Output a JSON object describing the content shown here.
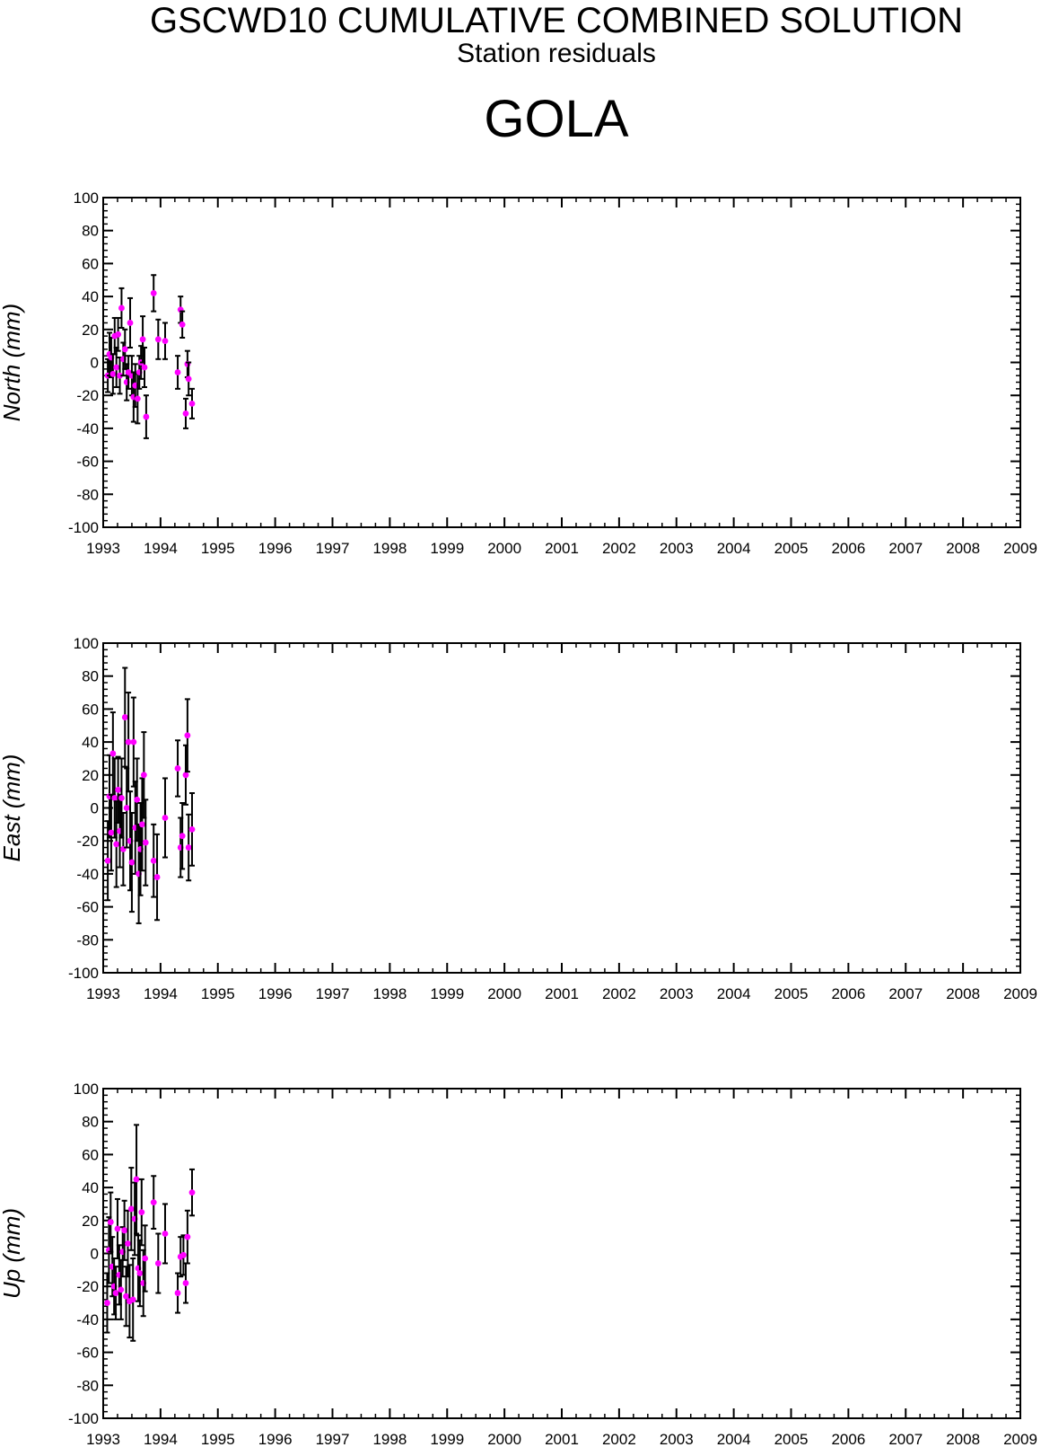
{
  "header": {
    "title": "GSCWD10 CUMULATIVE COMBINED SOLUTION",
    "subtitle": "Station residuals",
    "station": "GOLA"
  },
  "colors": {
    "point": "#ff00ff",
    "errorbar": "#000000",
    "axis": "#000000"
  },
  "chart_data": [
    {
      "type": "scatter",
      "panel": "north",
      "ylabel": "North (mm)",
      "xlim": [
        1993,
        2009
      ],
      "ylim": [
        -100,
        100
      ],
      "xticks": [
        "1993",
        "1994",
        "1995",
        "1996",
        "1997",
        "1998",
        "1999",
        "2000",
        "2001",
        "2002",
        "2003",
        "2004",
        "2005",
        "2006",
        "2007",
        "2008",
        "2009"
      ],
      "yticks": [
        "100",
        "80",
        "60",
        "40",
        "20",
        "0",
        "-20",
        "-40",
        "-60",
        "-80",
        "-100"
      ],
      "points": [
        {
          "x": 1993.08,
          "y": -8,
          "err": 10
        },
        {
          "x": 1993.11,
          "y": 5,
          "err": 13
        },
        {
          "x": 1993.14,
          "y": 3,
          "err": 12
        },
        {
          "x": 1993.17,
          "y": -7,
          "err": 12
        },
        {
          "x": 1993.2,
          "y": 16,
          "err": 11
        },
        {
          "x": 1993.23,
          "y": -3,
          "err": 12
        },
        {
          "x": 1993.26,
          "y": 17,
          "err": 10
        },
        {
          "x": 1993.29,
          "y": -8,
          "err": 11
        },
        {
          "x": 1993.32,
          "y": 33,
          "err": 12
        },
        {
          "x": 1993.35,
          "y": 2,
          "err": 10
        },
        {
          "x": 1993.38,
          "y": 8,
          "err": 12
        },
        {
          "x": 1993.41,
          "y": -12,
          "err": 11
        },
        {
          "x": 1993.44,
          "y": -6,
          "err": 10
        },
        {
          "x": 1993.47,
          "y": 24,
          "err": 15
        },
        {
          "x": 1993.5,
          "y": -8,
          "err": 12
        },
        {
          "x": 1993.53,
          "y": -21,
          "err": 15
        },
        {
          "x": 1993.56,
          "y": -14,
          "err": 13
        },
        {
          "x": 1993.6,
          "y": -22,
          "err": 15
        },
        {
          "x": 1993.63,
          "y": -6,
          "err": 10
        },
        {
          "x": 1993.66,
          "y": 0,
          "err": 10
        },
        {
          "x": 1993.69,
          "y": 14,
          "err": 14
        },
        {
          "x": 1993.72,
          "y": -3,
          "err": 12
        },
        {
          "x": 1993.75,
          "y": -33,
          "err": 13
        },
        {
          "x": 1993.88,
          "y": 42,
          "err": 11
        },
        {
          "x": 1993.96,
          "y": 14,
          "err": 12
        },
        {
          "x": 1994.08,
          "y": 13,
          "err": 11
        },
        {
          "x": 1994.3,
          "y": -6,
          "err": 10
        },
        {
          "x": 1994.35,
          "y": 32,
          "err": 8
        },
        {
          "x": 1994.38,
          "y": 23,
          "err": 8
        },
        {
          "x": 1994.44,
          "y": -31,
          "err": 9
        },
        {
          "x": 1994.47,
          "y": -1,
          "err": 8
        },
        {
          "x": 1994.49,
          "y": -10,
          "err": 10
        },
        {
          "x": 1994.55,
          "y": -25,
          "err": 9
        }
      ]
    },
    {
      "type": "scatter",
      "panel": "east",
      "ylabel": "East (mm)",
      "xlim": [
        1993,
        2009
      ],
      "ylim": [
        -100,
        100
      ],
      "xticks": [
        "1993",
        "1994",
        "1995",
        "1996",
        "1997",
        "1998",
        "1999",
        "2000",
        "2001",
        "2002",
        "2003",
        "2004",
        "2005",
        "2006",
        "2007",
        "2008",
        "2009"
      ],
      "yticks": [
        "100",
        "80",
        "60",
        "40",
        "20",
        "0",
        "-20",
        "-40",
        "-60",
        "-80",
        "-100"
      ],
      "points": [
        {
          "x": 1993.08,
          "y": -32,
          "err": 24
        },
        {
          "x": 1993.11,
          "y": 7,
          "err": 25
        },
        {
          "x": 1993.14,
          "y": -15,
          "err": 23
        },
        {
          "x": 1993.17,
          "y": 33,
          "err": 25
        },
        {
          "x": 1993.2,
          "y": 6,
          "err": 24
        },
        {
          "x": 1993.23,
          "y": -22,
          "err": 26
        },
        {
          "x": 1993.26,
          "y": 11,
          "err": 20
        },
        {
          "x": 1993.29,
          "y": -14,
          "err": 22
        },
        {
          "x": 1993.32,
          "y": 6,
          "err": 24
        },
        {
          "x": 1993.35,
          "y": -25,
          "err": 22
        },
        {
          "x": 1993.38,
          "y": 55,
          "err": 30
        },
        {
          "x": 1993.41,
          "y": 0,
          "err": 24
        },
        {
          "x": 1993.44,
          "y": 40,
          "err": 30
        },
        {
          "x": 1993.47,
          "y": -20,
          "err": 30
        },
        {
          "x": 1993.5,
          "y": -33,
          "err": 30
        },
        {
          "x": 1993.53,
          "y": 40,
          "err": 27
        },
        {
          "x": 1993.56,
          "y": -12,
          "err": 28
        },
        {
          "x": 1993.59,
          "y": 5,
          "err": 25
        },
        {
          "x": 1993.62,
          "y": -40,
          "err": 30
        },
        {
          "x": 1993.65,
          "y": -25,
          "err": 28
        },
        {
          "x": 1993.68,
          "y": -10,
          "err": 28
        },
        {
          "x": 1993.71,
          "y": 20,
          "err": 26
        },
        {
          "x": 1993.74,
          "y": -21,
          "err": 26
        },
        {
          "x": 1993.88,
          "y": -32,
          "err": 22
        },
        {
          "x": 1993.94,
          "y": -42,
          "err": 26
        },
        {
          "x": 1994.08,
          "y": -6,
          "err": 24
        },
        {
          "x": 1994.3,
          "y": 24,
          "err": 17
        },
        {
          "x": 1994.35,
          "y": -24,
          "err": 18
        },
        {
          "x": 1994.38,
          "y": -17,
          "err": 20
        },
        {
          "x": 1994.44,
          "y": 20,
          "err": 18
        },
        {
          "x": 1994.47,
          "y": 44,
          "err": 22
        },
        {
          "x": 1994.49,
          "y": -24,
          "err": 20
        },
        {
          "x": 1994.55,
          "y": -13,
          "err": 22
        }
      ]
    },
    {
      "type": "scatter",
      "panel": "up",
      "ylabel": "Up (mm)",
      "xlim": [
        1993,
        2009
      ],
      "ylim": [
        -100,
        100
      ],
      "xticks": [
        "1993",
        "1994",
        "1995",
        "1996",
        "1997",
        "1998",
        "1999",
        "2000",
        "2001",
        "2002",
        "2003",
        "2004",
        "2005",
        "2006",
        "2007",
        "2008",
        "2009"
      ],
      "yticks": [
        "100",
        "80",
        "60",
        "40",
        "20",
        "0",
        "-20",
        "-40",
        "-60",
        "-80",
        "-100"
      ],
      "points": [
        {
          "x": 1993.07,
          "y": -30,
          "err": 18
        },
        {
          "x": 1993.1,
          "y": 2,
          "err": 20
        },
        {
          "x": 1993.13,
          "y": 19,
          "err": 18
        },
        {
          "x": 1993.16,
          "y": -8,
          "err": 18
        },
        {
          "x": 1993.19,
          "y": -20,
          "err": 17
        },
        {
          "x": 1993.22,
          "y": -24,
          "err": 16
        },
        {
          "x": 1993.25,
          "y": 15,
          "err": 18
        },
        {
          "x": 1993.28,
          "y": -13,
          "err": 18
        },
        {
          "x": 1993.31,
          "y": -22,
          "err": 18
        },
        {
          "x": 1993.34,
          "y": 1,
          "err": 15
        },
        {
          "x": 1993.37,
          "y": 14,
          "err": 18
        },
        {
          "x": 1993.4,
          "y": -26,
          "err": 18
        },
        {
          "x": 1993.43,
          "y": 6,
          "err": 20
        },
        {
          "x": 1993.46,
          "y": -29,
          "err": 22
        },
        {
          "x": 1993.49,
          "y": 27,
          "err": 25
        },
        {
          "x": 1993.52,
          "y": -28,
          "err": 25
        },
        {
          "x": 1993.55,
          "y": 21,
          "err": 22
        },
        {
          "x": 1993.58,
          "y": 45,
          "err": 33
        },
        {
          "x": 1993.61,
          "y": -9,
          "err": 20
        },
        {
          "x": 1993.64,
          "y": -12,
          "err": 20
        },
        {
          "x": 1993.67,
          "y": 25,
          "err": 20
        },
        {
          "x": 1993.7,
          "y": -18,
          "err": 20
        },
        {
          "x": 1993.73,
          "y": -3,
          "err": 20
        },
        {
          "x": 1993.88,
          "y": 31,
          "err": 16
        },
        {
          "x": 1993.96,
          "y": -6,
          "err": 18
        },
        {
          "x": 1994.08,
          "y": 12,
          "err": 18
        },
        {
          "x": 1994.3,
          "y": -24,
          "err": 12
        },
        {
          "x": 1994.35,
          "y": -2,
          "err": 12
        },
        {
          "x": 1994.4,
          "y": -1,
          "err": 12
        },
        {
          "x": 1994.44,
          "y": -18,
          "err": 12
        },
        {
          "x": 1994.47,
          "y": 10,
          "err": 16
        },
        {
          "x": 1994.55,
          "y": 37,
          "err": 14
        }
      ]
    }
  ]
}
